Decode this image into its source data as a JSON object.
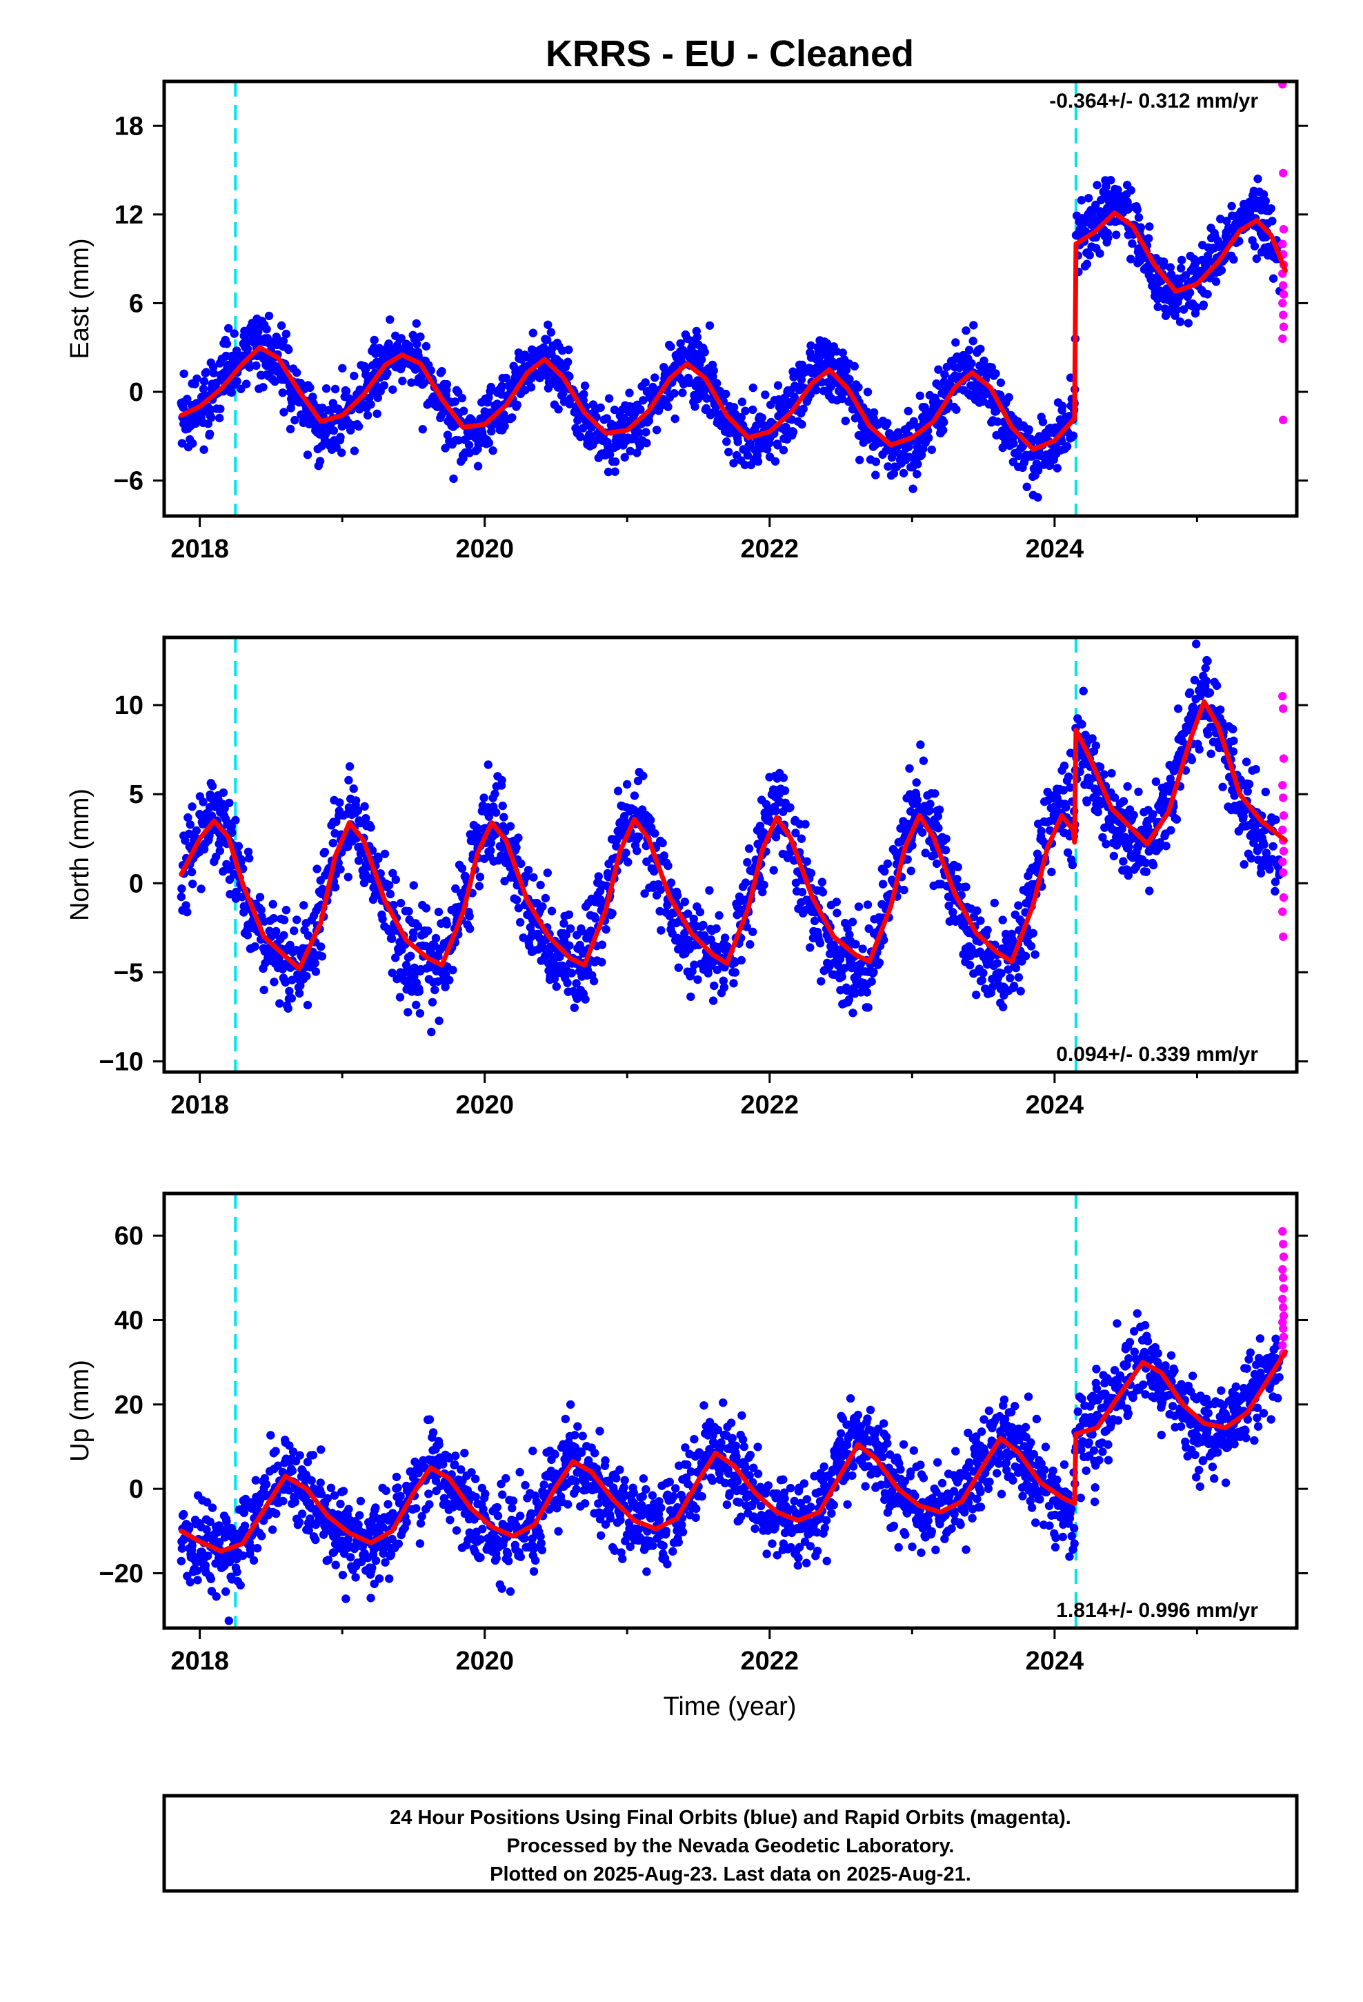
{
  "title": "KRRS  - EU - Cleaned",
  "xlabel": "Time (year)",
  "footer": {
    "line1": "24 Hour Positions Using Final Orbits (blue) and Rapid Orbits (magenta).",
    "line2": "Processed by the Nevada Geodetic Laboratory.",
    "line3": "Plotted on 2025-Aug-23. Last data on 2025-Aug-21."
  },
  "colors": {
    "final": "#0000ff",
    "rapid": "#ff00ff",
    "model": "#ff0000",
    "offset_line": "#00e5ee"
  },
  "chart_data": [
    {
      "type": "scatter",
      "name": "east",
      "ylabel": "East (mm)",
      "rate_text": "-0.364+/- 0.312 mm/yr",
      "rate_position": "top-right",
      "xlim": [
        2017.75,
        2025.7
      ],
      "ylim": [
        -8.4,
        21
      ],
      "xticks": [
        2018,
        2020,
        2022,
        2024
      ],
      "yticks": [
        -6,
        0,
        6,
        12,
        18
      ],
      "yticklabels": [
        "−6",
        "0",
        "6",
        "12",
        "18"
      ],
      "offset_lines": [
        2018.25,
        2024.15
      ],
      "data_start": 2017.87,
      "final_end": 2025.58,
      "rapid_start": 2025.6,
      "seasonal_amp": 2.6,
      "seasonal_peak": 2018.42,
      "noise": 1.1,
      "model": [
        [
          2017.87,
          -1.6
        ],
        [
          2018.0,
          -1.0
        ],
        [
          2018.15,
          0.2
        ],
        [
          2018.3,
          1.9
        ],
        [
          2018.42,
          3.0
        ],
        [
          2018.55,
          2.3
        ],
        [
          2018.7,
          0.0
        ],
        [
          2018.85,
          -2.0
        ],
        [
          2019.0,
          -1.6
        ],
        [
          2019.15,
          -0.2
        ],
        [
          2019.3,
          1.8
        ],
        [
          2019.42,
          2.5
        ],
        [
          2019.55,
          1.9
        ],
        [
          2019.7,
          -0.5
        ],
        [
          2019.85,
          -2.4
        ],
        [
          2020.0,
          -2.2
        ],
        [
          2020.15,
          -0.9
        ],
        [
          2020.3,
          1.3
        ],
        [
          2020.42,
          2.2
        ],
        [
          2020.55,
          1.0
        ],
        [
          2020.7,
          -1.4
        ],
        [
          2020.85,
          -2.8
        ],
        [
          2021.0,
          -2.6
        ],
        [
          2021.15,
          -1.3
        ],
        [
          2021.3,
          0.9
        ],
        [
          2021.42,
          1.9
        ],
        [
          2021.55,
          0.9
        ],
        [
          2021.7,
          -1.6
        ],
        [
          2021.85,
          -3.1
        ],
        [
          2022.0,
          -2.7
        ],
        [
          2022.15,
          -1.4
        ],
        [
          2022.3,
          0.6
        ],
        [
          2022.42,
          1.5
        ],
        [
          2022.55,
          0.2
        ],
        [
          2022.7,
          -2.3
        ],
        [
          2022.85,
          -3.6
        ],
        [
          2023.0,
          -3.1
        ],
        [
          2023.15,
          -2.0
        ],
        [
          2023.3,
          0.3
        ],
        [
          2023.42,
          1.3
        ],
        [
          2023.55,
          0.3
        ],
        [
          2023.7,
          -2.4
        ],
        [
          2023.85,
          -3.9
        ],
        [
          2024.0,
          -3.3
        ],
        [
          2024.14,
          -1.8
        ],
        [
          2024.15,
          10.0
        ],
        [
          2024.28,
          10.8
        ],
        [
          2024.42,
          12.1
        ],
        [
          2024.55,
          11.2
        ],
        [
          2024.7,
          8.6
        ],
        [
          2024.85,
          6.8
        ],
        [
          2025.0,
          7.3
        ],
        [
          2025.15,
          8.8
        ],
        [
          2025.3,
          10.9
        ],
        [
          2025.42,
          11.6
        ],
        [
          2025.52,
          10.6
        ],
        [
          2025.62,
          8.2
        ]
      ],
      "rapid_values": [
        20.8,
        14.8,
        11.0,
        10.0,
        9.3,
        8.6,
        8.0,
        7.2,
        6.6,
        6.0,
        5.2,
        4.4,
        3.6,
        -1.9
      ]
    },
    {
      "type": "scatter",
      "name": "north",
      "ylabel": "North (mm)",
      "rate_text": "0.094+/- 0.339 mm/yr",
      "rate_position": "bottom-right",
      "xlim": [
        2017.75,
        2025.7
      ],
      "ylim": [
        -10.6,
        13.8
      ],
      "xticks": [
        2018,
        2020,
        2022,
        2024
      ],
      "yticks": [
        -10,
        -5,
        0,
        5,
        10
      ],
      "yticklabels": [
        "−10",
        "−5",
        "0",
        "5",
        "10"
      ],
      "offset_lines": [
        2018.25,
        2024.15
      ],
      "data_start": 2017.87,
      "final_end": 2025.58,
      "rapid_start": 2025.6,
      "seasonal_amp": 3.8,
      "seasonal_peak": 2019.05,
      "noise": 1.3,
      "model": [
        [
          2017.87,
          0.5
        ],
        [
          2018.0,
          2.5
        ],
        [
          2018.1,
          3.5
        ],
        [
          2018.2,
          2.6
        ],
        [
          2018.3,
          0.0
        ],
        [
          2018.45,
          -3.0
        ],
        [
          2018.6,
          -4.1
        ],
        [
          2018.7,
          -4.8
        ],
        [
          2018.85,
          -2.2
        ],
        [
          2018.95,
          1.5
        ],
        [
          2019.05,
          3.4
        ],
        [
          2019.15,
          2.4
        ],
        [
          2019.3,
          -1.0
        ],
        [
          2019.45,
          -3.2
        ],
        [
          2019.6,
          -4.2
        ],
        [
          2019.7,
          -4.6
        ],
        [
          2019.85,
          -1.6
        ],
        [
          2019.95,
          1.7
        ],
        [
          2020.05,
          3.4
        ],
        [
          2020.15,
          2.4
        ],
        [
          2020.3,
          -1.0
        ],
        [
          2020.45,
          -3.0
        ],
        [
          2020.6,
          -4.2
        ],
        [
          2020.7,
          -4.6
        ],
        [
          2020.85,
          -1.5
        ],
        [
          2020.95,
          1.8
        ],
        [
          2021.05,
          3.6
        ],
        [
          2021.15,
          2.5
        ],
        [
          2021.3,
          -0.8
        ],
        [
          2021.45,
          -2.8
        ],
        [
          2021.6,
          -4.0
        ],
        [
          2021.7,
          -4.5
        ],
        [
          2021.85,
          -1.4
        ],
        [
          2021.95,
          1.9
        ],
        [
          2022.05,
          3.7
        ],
        [
          2022.15,
          2.5
        ],
        [
          2022.3,
          -0.8
        ],
        [
          2022.45,
          -3.0
        ],
        [
          2022.6,
          -4.0
        ],
        [
          2022.7,
          -4.4
        ],
        [
          2022.85,
          -1.3
        ],
        [
          2022.95,
          2.0
        ],
        [
          2023.05,
          3.8
        ],
        [
          2023.15,
          2.6
        ],
        [
          2023.3,
          -0.6
        ],
        [
          2023.45,
          -2.8
        ],
        [
          2023.6,
          -3.9
        ],
        [
          2023.7,
          -4.4
        ],
        [
          2023.85,
          -1.2
        ],
        [
          2023.95,
          2.0
        ],
        [
          2024.05,
          3.8
        ],
        [
          2024.13,
          3.0
        ],
        [
          2024.14,
          2.3
        ],
        [
          2024.15,
          8.6
        ],
        [
          2024.25,
          7.0
        ],
        [
          2024.4,
          4.2
        ],
        [
          2024.55,
          3.0
        ],
        [
          2024.65,
          2.2
        ],
        [
          2024.8,
          4.0
        ],
        [
          2024.95,
          8.0
        ],
        [
          2025.05,
          10.2
        ],
        [
          2025.15,
          8.8
        ],
        [
          2025.3,
          5.0
        ],
        [
          2025.45,
          3.5
        ],
        [
          2025.62,
          2.4
        ]
      ],
      "rapid_values": [
        10.5,
        9.8,
        7.0,
        5.5,
        4.8,
        3.8,
        3.0,
        2.4,
        1.8,
        1.2,
        0.6,
        -0.8,
        -1.6,
        -3.0
      ]
    },
    {
      "type": "scatter",
      "name": "up",
      "ylabel": "Up (mm)",
      "rate_text": "1.814+/- 0.996 mm/yr",
      "rate_position": "bottom-right",
      "xlim": [
        2017.75,
        2025.7
      ],
      "ylim": [
        -33,
        70
      ],
      "xticks": [
        2018,
        2020,
        2022,
        2024
      ],
      "yticks": [
        -20,
        0,
        20,
        40,
        60
      ],
      "yticklabels": [
        "−20",
        "0",
        "20",
        "40",
        "60"
      ],
      "offset_lines": [
        2018.25,
        2024.15
      ],
      "data_start": 2017.87,
      "final_end": 2025.58,
      "rapid_start": 2025.6,
      "seasonal_amp": 8.5,
      "seasonal_peak": 2018.62,
      "noise": 5.0,
      "model": [
        [
          2017.87,
          -10.0
        ],
        [
          2018.0,
          -12.5
        ],
        [
          2018.15,
          -14.8
        ],
        [
          2018.3,
          -13.0
        ],
        [
          2018.45,
          -5.0
        ],
        [
          2018.6,
          3.0
        ],
        [
          2018.75,
          0.0
        ],
        [
          2018.9,
          -6.5
        ],
        [
          2019.05,
          -10.5
        ],
        [
          2019.2,
          -12.8
        ],
        [
          2019.35,
          -10.0
        ],
        [
          2019.5,
          -1.0
        ],
        [
          2019.62,
          5.0
        ],
        [
          2019.75,
          2.5
        ],
        [
          2019.9,
          -4.5
        ],
        [
          2020.05,
          -9.0
        ],
        [
          2020.2,
          -11.2
        ],
        [
          2020.35,
          -8.5
        ],
        [
          2020.5,
          0.5
        ],
        [
          2020.62,
          6.5
        ],
        [
          2020.75,
          4.0
        ],
        [
          2020.9,
          -2.5
        ],
        [
          2021.05,
          -7.5
        ],
        [
          2021.2,
          -9.5
        ],
        [
          2021.35,
          -7.0
        ],
        [
          2021.5,
          2.0
        ],
        [
          2021.62,
          8.5
        ],
        [
          2021.75,
          5.5
        ],
        [
          2021.9,
          -1.0
        ],
        [
          2022.05,
          -5.5
        ],
        [
          2022.2,
          -7.5
        ],
        [
          2022.35,
          -5.5
        ],
        [
          2022.5,
          3.5
        ],
        [
          2022.62,
          10.5
        ],
        [
          2022.75,
          7.0
        ],
        [
          2022.9,
          0.0
        ],
        [
          2023.05,
          -4.0
        ],
        [
          2023.2,
          -5.5
        ],
        [
          2023.35,
          -3.0
        ],
        [
          2023.5,
          5.5
        ],
        [
          2023.62,
          12.0
        ],
        [
          2023.75,
          8.5
        ],
        [
          2023.9,
          1.5
        ],
        [
          2024.05,
          -2.0
        ],
        [
          2024.14,
          -3.5
        ],
        [
          2024.15,
          13.0
        ],
        [
          2024.3,
          14.5
        ],
        [
          2024.45,
          22.0
        ],
        [
          2024.62,
          30.0
        ],
        [
          2024.75,
          27.5
        ],
        [
          2024.9,
          20.0
        ],
        [
          2025.05,
          15.5
        ],
        [
          2025.2,
          14.5
        ],
        [
          2025.35,
          18.0
        ],
        [
          2025.5,
          26.0
        ],
        [
          2025.62,
          32.5
        ]
      ],
      "rapid_values": [
        61.0,
        58.0,
        55.0,
        52.0,
        50.0,
        47.5,
        45.0,
        43.0,
        41.0,
        39.5,
        38.0,
        36.0,
        34.0,
        32.0
      ]
    }
  ]
}
